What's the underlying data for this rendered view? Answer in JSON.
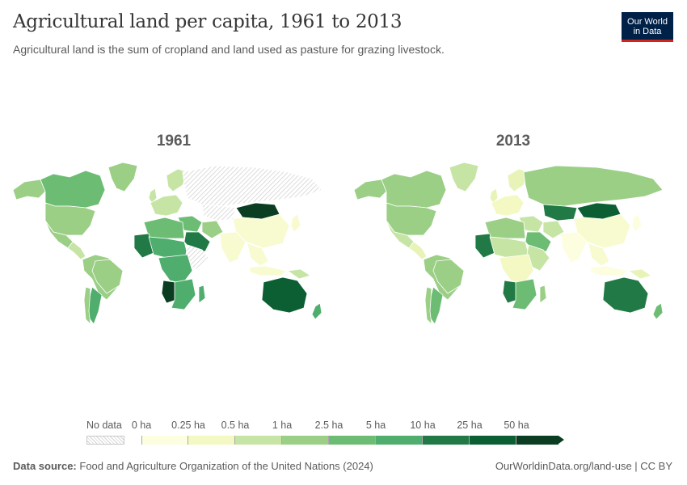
{
  "header": {
    "title": "Agricultural land per capita, 1961 to 2013",
    "subtitle": "Agricultural land is the sum of cropland and land used as pasture for grazing livestock.",
    "logo_line1": "Our World",
    "logo_line2": "in Data"
  },
  "maps": [
    {
      "title": "1961",
      "regions": {
        "north_america": "#9bcf86",
        "canada": "#6dbc74",
        "greenland": "#9bcf86",
        "alaska": "#9bcf86",
        "mexico": "#9bcf86",
        "central_america": "#c6e5a5",
        "south_america": "#9bcf86",
        "argentina": "#4fae6d",
        "chile": "#9bcf86",
        "brazil": "#9bcf86",
        "west_europe": "#c6e5a5",
        "uk": "#c6e5a5",
        "scandinavia": "#c6e5a5",
        "soviet": "nodata",
        "mongolia": "#0a3d22",
        "kazakhstan": "nodata",
        "china": "#f8fbcf",
        "india": "#f8fbcf",
        "middle_east": "#6dbc74",
        "saudi": "#217a45",
        "north_africa": "#6dbc74",
        "west_africa": "#217a45",
        "sahel": "#4fae6d",
        "central_africa": "#4fae6d",
        "east_africa": "nodata",
        "south_africa": "#4fae6d",
        "namibia": "#0a3d22",
        "madagascar": "#4fae6d",
        "se_asia": "#f8fbcf",
        "indonesia": "#f8fbcf",
        "japan": "#f8fbcf",
        "australia": "#0b5f33",
        "new_zealand": "#4fae6d",
        "iran": "#9bcf86",
        "new_guinea": "#c6e5a5"
      }
    },
    {
      "title": "2013",
      "regions": {
        "north_america": "#9bcf86",
        "canada": "#9bcf86",
        "greenland": "#c6e5a5",
        "alaska": "#9bcf86",
        "mexico": "#c6e5a5",
        "central_america": "#e8f3b8",
        "south_america": "#9bcf86",
        "argentina": "#6dbc74",
        "chile": "#9bcf86",
        "brazil": "#9bcf86",
        "west_europe": "#f4f8c2",
        "uk": "#e8f3b8",
        "scandinavia": "#e8f3b8",
        "soviet": "#9bcf86",
        "mongolia": "#0b5f33",
        "kazakhstan": "#217a45",
        "china": "#f8fbcf",
        "india": "#fdfee0",
        "middle_east": "#c6e5a5",
        "saudi": "#6dbc74",
        "north_africa": "#9bcf86",
        "west_africa": "#217a45",
        "sahel": "#c6e5a5",
        "central_africa": "#f4f8c2",
        "east_africa": "#c6e5a5",
        "south_africa": "#6dbc74",
        "namibia": "#217a45",
        "madagascar": "#9bcf86",
        "se_asia": "#f8fbcf",
        "indonesia": "#fdfee0",
        "japan": "#fdfee0",
        "australia": "#217a45",
        "new_zealand": "#6dbc74",
        "iran": "#c6e5a5",
        "new_guinea": "#e8f3b8"
      }
    }
  ],
  "legend": {
    "no_data_label": "No data",
    "bins": [
      {
        "label": "0 ha",
        "color": "#fdfee0"
      },
      {
        "label": "0.25 ha",
        "color": "#f4f8c2"
      },
      {
        "label": "0.5 ha",
        "color": "#c6e5a5"
      },
      {
        "label": "1 ha",
        "color": "#9bcf86"
      },
      {
        "label": "2.5 ha",
        "color": "#6dbc74"
      },
      {
        "label": "5 ha",
        "color": "#4fae6d"
      },
      {
        "label": "10 ha",
        "color": "#217a45"
      },
      {
        "label": "25 ha",
        "color": "#0b5f33"
      },
      {
        "label": "50 ha",
        "color": "#0a3d22"
      }
    ]
  },
  "footer": {
    "source_label": "Data source:",
    "source_text": "Food and Agriculture Organization of the United Nations (2024)",
    "url_text": "OurWorldinData.org/land-use | CC BY"
  }
}
